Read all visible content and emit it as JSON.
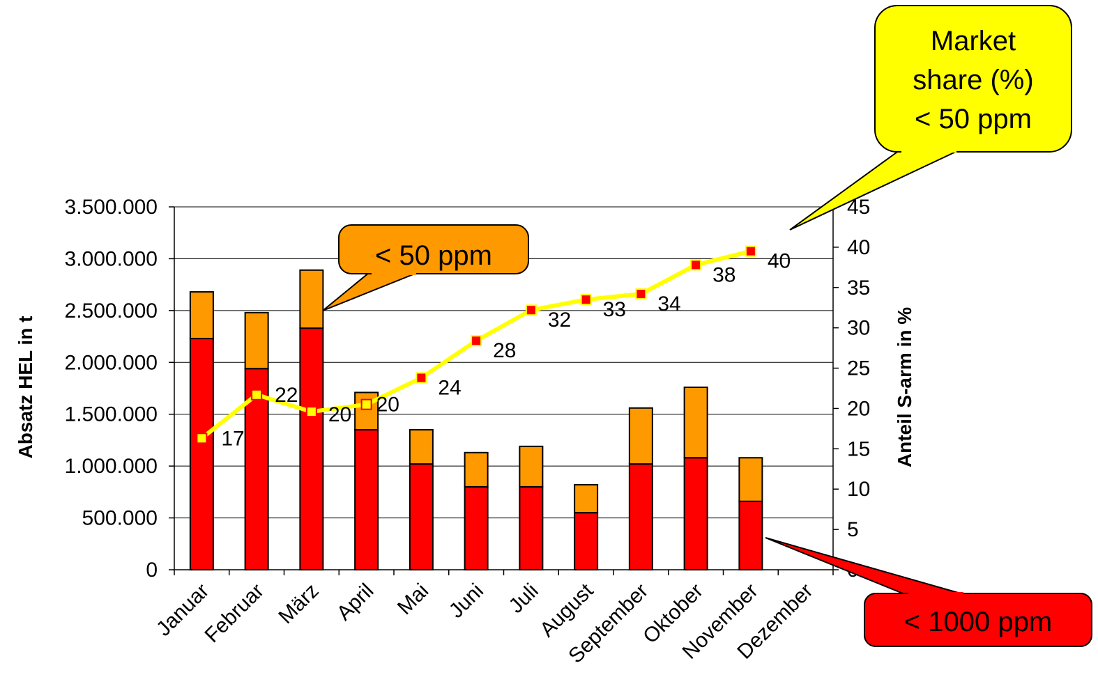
{
  "chart_data": {
    "type": "bar",
    "stacked": true,
    "categories": [
      "Januar",
      "Februar",
      "März",
      "April",
      "Mai",
      "Juni",
      "Juli",
      "August",
      "September",
      "Oktober",
      "November",
      "Dezember"
    ],
    "series": [
      {
        "values": [
          2230000,
          1940000,
          2330000,
          1350000,
          1020000,
          800000,
          800000,
          550000,
          1020000,
          1080000,
          660000,
          null
        ],
        "color": "#ff0000",
        "axis": "left"
      },
      {
        "values": [
          450000,
          540000,
          560000,
          360000,
          330000,
          330000,
          390000,
          270000,
          540000,
          680000,
          420000,
          null
        ],
        "color": "#ff9900",
        "axis": "left"
      }
    ],
    "line_series": {
      "values": [
        17,
        22,
        20,
        20,
        24,
        28,
        32,
        33,
        34,
        38,
        40,
        null
      ],
      "plotted_values": [
        16.3,
        21.7,
        19.6,
        20.5,
        23.8,
        28.4,
        32.2,
        33.5,
        34.2,
        37.8,
        39.5,
        null
      ],
      "color": "#ffff00",
      "marker_colors_hollow": [
        "#ffff00",
        "#ffff00",
        "#ffff00",
        "#ffff00"
      ],
      "marker_fill_after": "#ff0000",
      "axis": "right"
    },
    "ylabel": "Absatz HEL in t",
    "y2label": "Anteil S-arm in %",
    "ylim": [
      0,
      3500000
    ],
    "y2lim": [
      0,
      45
    ],
    "yticks": [
      "0",
      "500.000",
      "1.000.000",
      "1.500.000",
      "2.000.000",
      "2.500.000",
      "3.000.000",
      "3.500.000"
    ],
    "y2ticks": [
      "0",
      "5",
      "10",
      "15",
      "20",
      "25",
      "30",
      "35",
      "40",
      "45"
    ],
    "grid": true,
    "annotations": [
      {
        "text_lines": [
          "Market",
          "share (%)",
          "< 50 ppm"
        ],
        "color": "#ffff00"
      },
      {
        "text_lines": [
          "< 50 ppm"
        ],
        "color": "#ff9900"
      },
      {
        "text_lines": [
          "< 1000 ppm"
        ],
        "color": "#ff0000"
      }
    ]
  }
}
